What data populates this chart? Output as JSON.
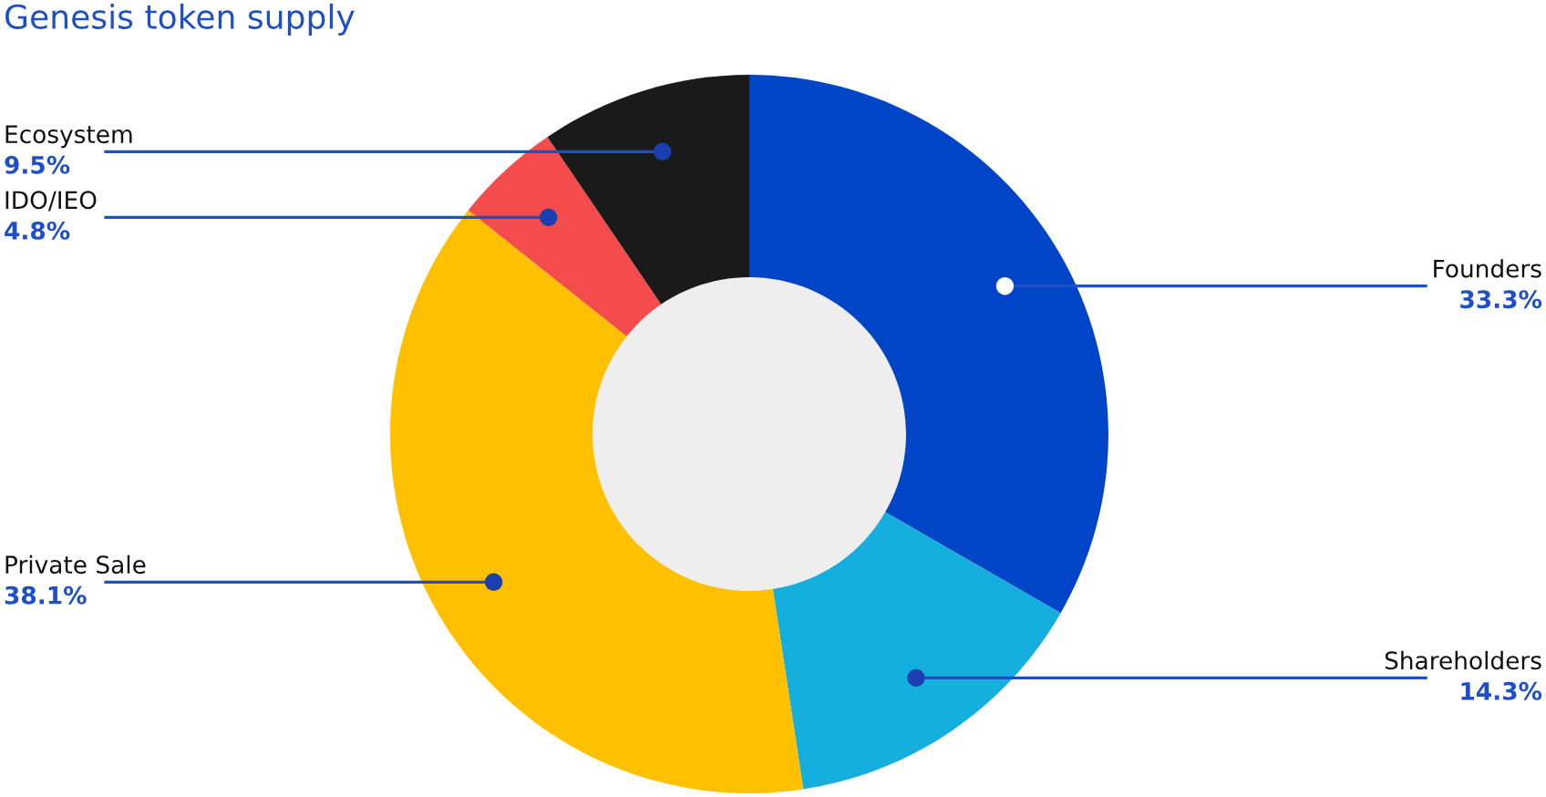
{
  "chart_data": {
    "type": "donut",
    "title": "Genesis token supply",
    "categories": [
      "Founders",
      "Shareholders",
      "Private Sale",
      "IDO/IEO",
      "Ecosystem"
    ],
    "values": [
      33.3,
      14.3,
      38.1,
      4.8,
      9.5
    ],
    "value_labels": [
      "33.3%",
      "14.3%",
      "38.1%",
      "4.8%",
      "9.5%"
    ],
    "colors": [
      "#0044c8",
      "#14afdc",
      "#ffc000",
      "#f44c4c",
      "#1a1a1a"
    ],
    "legend": false
  }
}
